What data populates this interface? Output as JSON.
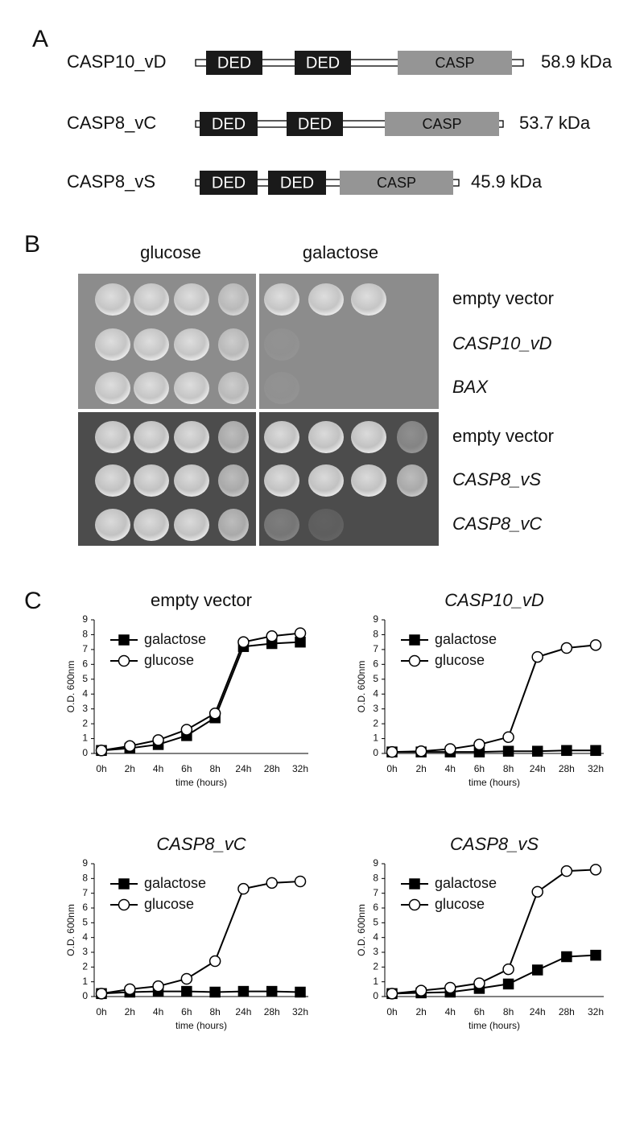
{
  "panel_a": {
    "label": "A",
    "proteins": [
      {
        "name": "CASP10_vD",
        "domains": [
          "DED",
          "DED",
          "CASP"
        ],
        "mass": "58.9 kDa"
      },
      {
        "name": "CASP8_vC",
        "domains": [
          "DED",
          "DED",
          "CASP"
        ],
        "mass": "53.7 kDa"
      },
      {
        "name": "CASP8_vS",
        "domains": [
          "DED",
          "DED",
          "CASP"
        ],
        "mass": "45.9 kDa"
      }
    ]
  },
  "panel_b": {
    "label": "B",
    "columns": [
      "glucose",
      "galactose"
    ],
    "rows": [
      {
        "label": "empty vector",
        "italic": false
      },
      {
        "label": "CASP10_vD",
        "italic": true
      },
      {
        "label": "BAX",
        "italic": true
      },
      {
        "label": "empty vector",
        "italic": false
      },
      {
        "label": "CASP8_vS",
        "italic": true
      },
      {
        "label": "CASP8_vC",
        "italic": true
      }
    ]
  },
  "panel_c": {
    "label": "C"
  },
  "chart_data": [
    {
      "type": "line",
      "title": "empty vector",
      "title_italic": false,
      "x_label": "time (hours)",
      "y_label": "O.D. 600nm",
      "categories": [
        "0h",
        "2h",
        "4h",
        "6h",
        "8h",
        "24h",
        "28h",
        "32h"
      ],
      "ylim": [
        0,
        9
      ],
      "yticks": [
        0,
        1,
        2,
        3,
        4,
        5,
        6,
        7,
        8,
        9
      ],
      "series": [
        {
          "name": "galactose",
          "color": "#000000",
          "marker": "square",
          "filled": true,
          "values": [
            0.2,
            0.35,
            0.6,
            1.2,
            2.4,
            7.2,
            7.4,
            7.5
          ]
        },
        {
          "name": "glucose",
          "color": "#000000",
          "marker": "circle",
          "filled": false,
          "values": [
            0.2,
            0.5,
            0.9,
            1.6,
            2.7,
            7.5,
            7.9,
            8.1
          ]
        }
      ]
    },
    {
      "type": "line",
      "title": "CASP10_vD",
      "title_italic": true,
      "x_label": "time (hours)",
      "y_label": "O.D. 600nm",
      "categories": [
        "0h",
        "2h",
        "4h",
        "6h",
        "8h",
        "24h",
        "28h",
        "32h"
      ],
      "ylim": [
        0,
        9
      ],
      "yticks": [
        0,
        1,
        2,
        3,
        4,
        5,
        6,
        7,
        8,
        9
      ],
      "series": [
        {
          "name": "galactose",
          "color": "#000000",
          "marker": "square",
          "filled": true,
          "values": [
            0.1,
            0.1,
            0.1,
            0.1,
            0.15,
            0.15,
            0.2,
            0.2
          ]
        },
        {
          "name": "glucose",
          "color": "#000000",
          "marker": "circle",
          "filled": false,
          "values": [
            0.1,
            0.15,
            0.3,
            0.6,
            1.1,
            6.5,
            7.1,
            7.3
          ]
        }
      ]
    },
    {
      "type": "line",
      "title": "CASP8_vC",
      "title_italic": true,
      "x_label": "time (hours)",
      "y_label": "O.D. 600nm",
      "categories": [
        "0h",
        "2h",
        "4h",
        "6h",
        "8h",
        "24h",
        "28h",
        "32h"
      ],
      "ylim": [
        0,
        9
      ],
      "yticks": [
        0,
        1,
        2,
        3,
        4,
        5,
        6,
        7,
        8,
        9
      ],
      "series": [
        {
          "name": "galactose",
          "color": "#000000",
          "marker": "square",
          "filled": true,
          "values": [
            0.2,
            0.3,
            0.35,
            0.35,
            0.3,
            0.35,
            0.35,
            0.3
          ]
        },
        {
          "name": "glucose",
          "color": "#000000",
          "marker": "circle",
          "filled": false,
          "values": [
            0.2,
            0.5,
            0.7,
            1.2,
            2.4,
            7.3,
            7.7,
            7.8
          ]
        }
      ]
    },
    {
      "type": "line",
      "title": "CASP8_vS",
      "title_italic": true,
      "x_label": "time (hours)",
      "y_label": "O.D. 600nm",
      "categories": [
        "0h",
        "2h",
        "4h",
        "6h",
        "8h",
        "24h",
        "28h",
        "32h"
      ],
      "ylim": [
        0,
        9
      ],
      "yticks": [
        0,
        1,
        2,
        3,
        4,
        5,
        6,
        7,
        8,
        9
      ],
      "series": [
        {
          "name": "galactose",
          "color": "#000000",
          "marker": "square",
          "filled": true,
          "values": [
            0.2,
            0.25,
            0.3,
            0.55,
            0.85,
            1.8,
            2.7,
            2.8
          ]
        },
        {
          "name": "glucose",
          "color": "#000000",
          "marker": "circle",
          "filled": false,
          "values": [
            0.2,
            0.4,
            0.6,
            0.9,
            1.85,
            7.1,
            8.5,
            8.6
          ]
        }
      ]
    }
  ]
}
